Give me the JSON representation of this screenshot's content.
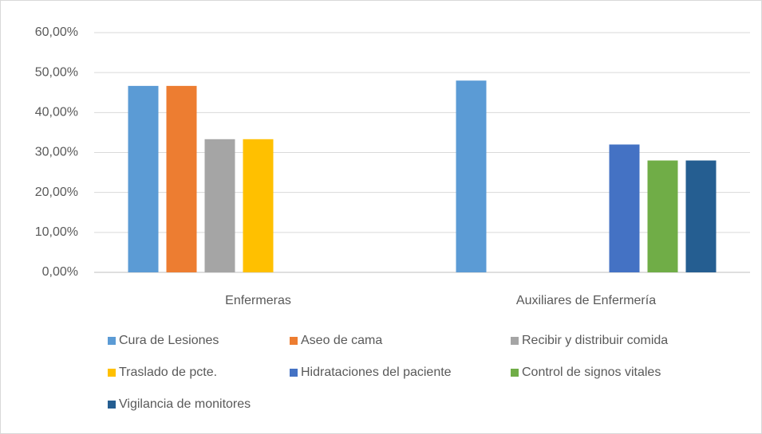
{
  "chart_data": {
    "type": "bar",
    "categories": [
      "Enfermeras",
      "Auxiliares de Enfermería"
    ],
    "series": [
      {
        "name": "Cura de Lesiones",
        "color": "#5b9bd5",
        "values": [
          46.67,
          48.0
        ]
      },
      {
        "name": "Aseo de cama",
        "color": "#ed7d31",
        "values": [
          46.67,
          null
        ]
      },
      {
        "name": "Recibir y distribuir comida",
        "color": "#a5a5a5",
        "values": [
          33.33,
          null
        ]
      },
      {
        "name": "Traslado de pcte.",
        "color": "#ffc000",
        "values": [
          33.33,
          null
        ]
      },
      {
        "name": "Hidrataciones del paciente",
        "color": "#4472c4",
        "values": [
          null,
          32.0
        ]
      },
      {
        "name": "Control de signos vitales",
        "color": "#70ad47",
        "values": [
          null,
          28.0
        ]
      },
      {
        "name": "Vigilancia de monitores",
        "color": "#255e91",
        "values": [
          null,
          28.0
        ]
      }
    ],
    "ylim": [
      0,
      60
    ],
    "yticks": [
      {
        "value": 0,
        "label": "0,00%"
      },
      {
        "value": 10,
        "label": "10,00%"
      },
      {
        "value": 20,
        "label": "20,00%"
      },
      {
        "value": 30,
        "label": "30,00%"
      },
      {
        "value": 40,
        "label": "40,00%"
      },
      {
        "value": 50,
        "label": "50,00%"
      },
      {
        "value": 60,
        "label": "60,00%"
      }
    ],
    "grid": true,
    "legend": "bottom"
  }
}
